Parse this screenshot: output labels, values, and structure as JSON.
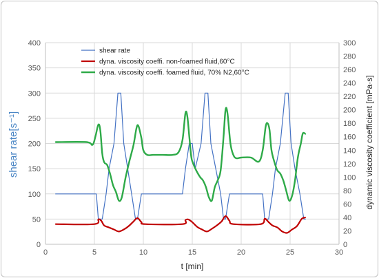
{
  "chart_data": {
    "type": "line",
    "xlabel": "t [min]",
    "ylabel": "shear rate[s⁻¹]",
    "y2label": "dynamic viscosity coefficient [mPa·s]",
    "xlim": [
      0,
      30
    ],
    "ylim": [
      0,
      400
    ],
    "y2lim": [
      0,
      300
    ],
    "xticks": [
      "0",
      "5",
      "10",
      "15",
      "20",
      "25",
      "30"
    ],
    "yticks": [
      "0",
      "50",
      "100",
      "150",
      "200",
      "250",
      "300",
      "350",
      "400"
    ],
    "y2ticks": [
      "0",
      "20",
      "40",
      "60",
      "80",
      "100",
      "120",
      "140",
      "160",
      "180",
      "200",
      "220",
      "240",
      "260",
      "280",
      "300"
    ],
    "grid": true,
    "legend_position": "top-left",
    "series": [
      {
        "name": "shear rate",
        "axis": "left",
        "color": "#4472c4",
        "x": [
          1.0,
          5.2,
          5.4,
          5.8,
          6.2,
          6.5,
          7.0,
          7.4,
          7.7,
          8.0,
          8.4,
          8.8,
          9.2,
          9.4,
          9.8,
          10.2,
          14.0,
          14.3,
          14.7,
          15.0,
          15.3,
          15.9,
          16.3,
          16.6,
          16.9,
          17.4,
          17.9,
          18.2,
          18.4,
          18.8,
          19.2,
          22.2,
          22.4,
          22.8,
          23.2,
          23.5,
          24.0,
          24.5,
          24.8,
          25.1,
          25.5,
          26.0,
          26.4,
          26.6
        ],
        "y": [
          100,
          100,
          50,
          50,
          100,
          150,
          200,
          300,
          300,
          200,
          150,
          100,
          50,
          50,
          100,
          100,
          100,
          150,
          200,
          200,
          150,
          200,
          300,
          300,
          200,
          150,
          100,
          50,
          50,
          100,
          100,
          100,
          50,
          50,
          100,
          150,
          200,
          300,
          300,
          200,
          150,
          100,
          50,
          50
        ]
      },
      {
        "name": "dyna. viscosity coeffi. non-foamed fluid,60°C",
        "axis": "right",
        "color": "#c00000",
        "x": [
          1.0,
          5.0,
          5.4,
          5.7,
          6.0,
          6.5,
          7.0,
          7.5,
          8.0,
          8.5,
          9.0,
          9.4,
          9.8,
          10.2,
          14.0,
          14.3,
          14.6,
          15.0,
          15.5,
          16.0,
          16.5,
          17.0,
          17.5,
          18.0,
          18.4,
          18.8,
          19.2,
          22.0,
          22.4,
          22.8,
          23.2,
          23.7,
          24.2,
          24.7,
          25.2,
          25.7,
          26.2,
          26.6
        ],
        "y": [
          30.0,
          30.0,
          37.0,
          35.0,
          28.0,
          25.0,
          22.0,
          19.0,
          22.0,
          27.0,
          34.0,
          39.0,
          33.0,
          30.0,
          30.0,
          36.0,
          37.0,
          33.0,
          26.0,
          22.0,
          19.0,
          23.0,
          28.0,
          34.0,
          42.0,
          35.0,
          30.0,
          30.0,
          38.0,
          33.0,
          28.0,
          25.0,
          19.0,
          17.0,
          22.0,
          27.0,
          38.0,
          40.0
        ]
      },
      {
        "name": "dyna. viscosity coeffi. foamed fluid, 70% N2,60°C",
        "axis": "right",
        "color": "#2eaa48",
        "x": [
          1.0,
          4.2,
          4.8,
          5.1,
          5.4,
          5.6,
          5.8,
          6.0,
          6.3,
          6.6,
          6.9,
          7.2,
          7.5,
          7.8,
          8.2,
          8.6,
          9.0,
          9.3,
          9.5,
          9.8,
          10.0,
          10.4,
          11.0,
          12.0,
          13.0,
          13.6,
          14.0,
          14.3,
          14.5,
          14.7,
          14.9,
          15.1,
          15.4,
          15.8,
          16.1,
          16.4,
          16.7,
          17.0,
          17.3,
          17.6,
          17.9,
          18.2,
          18.4,
          18.6,
          18.9,
          19.2,
          19.5,
          20.0,
          21.0,
          21.8,
          22.2,
          22.5,
          22.7,
          22.9,
          23.1,
          23.4,
          23.7,
          24.0,
          24.3,
          24.6,
          24.9,
          25.2,
          25.5,
          25.8,
          26.1,
          26.3,
          26.6
        ],
        "y": [
          152.0,
          152.0,
          148.0,
          160.0,
          178.0,
          170.0,
          135.0,
          122.0,
          118.0,
          105.0,
          88.0,
          78.0,
          65.0,
          70.0,
          100.0,
          125.0,
          148.0,
          173.0,
          176.0,
          158.0,
          140.0,
          133.0,
          133.0,
          133.0,
          133.0,
          137.0,
          155.0,
          195.0,
          190.0,
          160.0,
          130.0,
          120.0,
          110.0,
          100.0,
          95.0,
          85.0,
          70.0,
          65.0,
          85.0,
          95.0,
          110.0,
          160.0,
          200.0,
          195.0,
          150.0,
          133.0,
          128.0,
          129.0,
          129.0,
          123.0,
          140.0,
          175.0,
          180.0,
          170.0,
          140.0,
          122.0,
          110.0,
          105.0,
          95.0,
          80.0,
          65.0,
          72.0,
          95.0,
          130.0,
          150.0,
          165.0,
          164.0
        ]
      }
    ]
  }
}
